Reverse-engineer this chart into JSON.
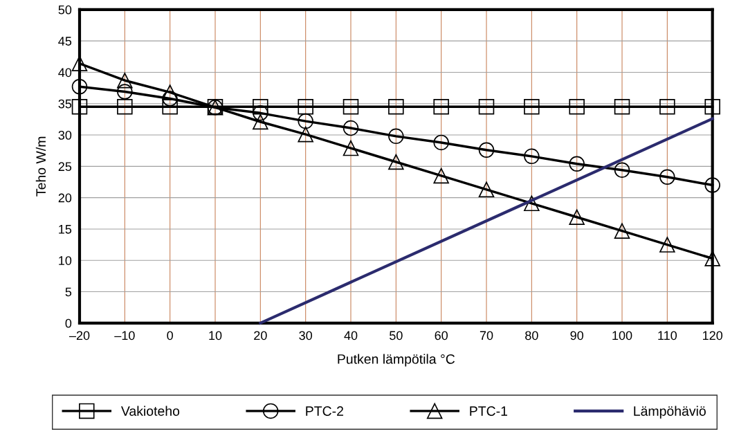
{
  "chart_data": {
    "type": "line",
    "xlabel": "Putken lämpötila °C",
    "ylabel": "Teho W/m",
    "x": [
      -20,
      -10,
      0,
      10,
      20,
      30,
      40,
      50,
      60,
      70,
      80,
      90,
      100,
      110,
      120
    ],
    "xlim": [
      -20,
      120
    ],
    "xticks": [
      {
        "value": -20,
        "label": "–20"
      },
      {
        "value": -10,
        "label": "–10"
      },
      0,
      10,
      20,
      30,
      40,
      50,
      60,
      70,
      80,
      90,
      100,
      110,
      120
    ],
    "ylim": [
      0,
      50
    ],
    "yticks": [
      0,
      5,
      10,
      15,
      20,
      25,
      30,
      35,
      40,
      45,
      50
    ],
    "grid": true,
    "legend": "bottom",
    "series": [
      {
        "name": "Vakioteho",
        "color": "#000000",
        "marker": "square",
        "values": [
          34.5,
          34.5,
          34.5,
          34.5,
          34.5,
          34.5,
          34.5,
          34.5,
          34.5,
          34.5,
          34.5,
          34.5,
          34.5,
          34.5,
          34.5
        ]
      },
      {
        "name": "PTC-2",
        "color": "#000000",
        "marker": "circle",
        "values": [
          37.7,
          36.9,
          35.8,
          34.4,
          33.5,
          32.2,
          31.1,
          29.8,
          28.8,
          27.6,
          26.6,
          25.4,
          24.4,
          23.3,
          22.0
        ]
      },
      {
        "name": "PTC-1",
        "color": "#000000",
        "marker": "triangle",
        "values": [
          41.4,
          38.7,
          36.8,
          34.4,
          32.1,
          30.1,
          27.9,
          25.7,
          23.5,
          21.3,
          19.1,
          16.9,
          14.7,
          12.5,
          10.3
        ]
      },
      {
        "name": "Lämpöhäviö",
        "color": "#2b2b6e",
        "marker": "none",
        "x": [
          20,
          120
        ],
        "values": [
          0,
          32.6
        ]
      }
    ]
  }
}
